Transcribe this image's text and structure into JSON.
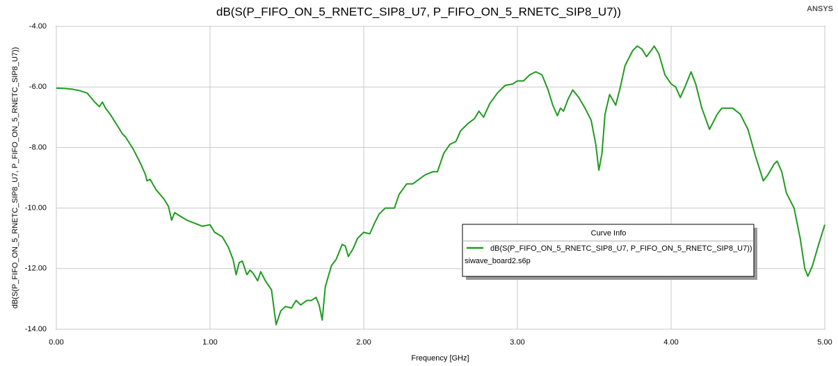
{
  "chart_data": {
    "type": "line",
    "title": "dB(S(P_FIFO_ON_5_RNETC_SIP8_U7, P_FIFO_ON_5_RNETC_SIP8_U7))",
    "brand": "ANSYS",
    "x_label": "Frequency [GHz]",
    "y_label": "dB(S(P_FIFO_ON_5_RNETC_SIP8_U7, P_FIFO_ON_5_RNETC_SIP8_U7))",
    "legend_title": "Curve Info",
    "legend_source": "siwave_board2.s6p",
    "grid": true,
    "xlim": [
      0,
      5
    ],
    "ylim": [
      -14,
      -4
    ],
    "xticks": [
      {
        "value": 0,
        "label": "0.00"
      },
      {
        "value": 1,
        "label": "1.00"
      },
      {
        "value": 2,
        "label": "2.00"
      },
      {
        "value": 3,
        "label": "3.00"
      },
      {
        "value": 4,
        "label": "4.00"
      },
      {
        "value": 5,
        "label": "5.00"
      }
    ],
    "yticks": [
      {
        "value": -14,
        "label": "-14.00"
      },
      {
        "value": -12,
        "label": "-12.00"
      },
      {
        "value": -10,
        "label": "-10.00"
      },
      {
        "value": -8,
        "label": "-8.00"
      },
      {
        "value": -6,
        "label": "-6.00"
      },
      {
        "value": -4,
        "label": "-4.00"
      }
    ],
    "x": [
      0,
      0.05,
      0.1,
      0.15,
      0.2,
      0.25,
      0.28,
      0.3,
      0.32,
      0.35,
      0.4,
      0.43,
      0.45,
      0.5,
      0.55,
      0.58,
      0.59,
      0.61,
      0.65,
      0.7,
      0.73,
      0.75,
      0.77,
      0.8,
      0.85,
      0.9,
      0.95,
      1.0,
      1.03,
      1.08,
      1.12,
      1.15,
      1.17,
      1.19,
      1.21,
      1.24,
      1.26,
      1.28,
      1.31,
      1.33,
      1.36,
      1.4,
      1.43,
      1.46,
      1.49,
      1.53,
      1.56,
      1.59,
      1.63,
      1.66,
      1.69,
      1.71,
      1.73,
      1.75,
      1.79,
      1.82,
      1.86,
      1.88,
      1.9,
      1.93,
      1.96,
      2.0,
      2.04,
      2.07,
      2.1,
      2.14,
      2.2,
      2.23,
      2.28,
      2.32,
      2.4,
      2.45,
      2.48,
      2.52,
      2.56,
      2.6,
      2.63,
      2.68,
      2.72,
      2.75,
      2.78,
      2.82,
      2.87,
      2.92,
      2.97,
      3.0,
      3.04,
      3.08,
      3.12,
      3.16,
      3.2,
      3.23,
      3.26,
      3.28,
      3.3,
      3.33,
      3.36,
      3.4,
      3.44,
      3.48,
      3.51,
      3.53,
      3.55,
      3.57,
      3.6,
      3.64,
      3.67,
      3.7,
      3.75,
      3.78,
      3.81,
      3.84,
      3.87,
      3.89,
      3.92,
      3.96,
      4.0,
      4.03,
      4.06,
      4.09,
      4.13,
      4.16,
      4.2,
      4.25,
      4.3,
      4.33,
      4.4,
      4.45,
      4.5,
      4.55,
      4.6,
      4.63,
      4.67,
      4.69,
      4.72,
      4.75,
      4.8,
      4.84,
      4.87,
      4.89,
      4.92,
      4.96,
      5.0
    ],
    "series": [
      {
        "name": "dB(S(P_FIFO_ON_5_RNETC_SIP8_U7, P_FIFO_ON_5_RNETC_SIP8_U7))",
        "color": "#1f9a1f",
        "values": [
          -6.04,
          -6.05,
          -6.07,
          -6.12,
          -6.2,
          -6.5,
          -6.65,
          -6.5,
          -6.7,
          -6.9,
          -7.3,
          -7.55,
          -7.65,
          -8.05,
          -8.55,
          -8.9,
          -9.1,
          -9.05,
          -9.4,
          -9.7,
          -9.95,
          -10.4,
          -10.15,
          -10.25,
          -10.4,
          -10.5,
          -10.6,
          -10.55,
          -10.8,
          -10.95,
          -11.3,
          -11.7,
          -12.2,
          -11.8,
          -11.75,
          -12.2,
          -12.05,
          -12.15,
          -12.4,
          -12.1,
          -12.4,
          -12.7,
          -13.85,
          -13.4,
          -13.25,
          -13.3,
          -13.05,
          -13.2,
          -13.05,
          -13.05,
          -12.95,
          -13.2,
          -13.7,
          -12.6,
          -11.9,
          -11.7,
          -11.2,
          -11.25,
          -11.6,
          -11.35,
          -11.0,
          -10.8,
          -10.85,
          -10.5,
          -10.2,
          -10.0,
          -10.0,
          -9.55,
          -9.2,
          -9.2,
          -8.9,
          -8.8,
          -8.8,
          -8.2,
          -7.9,
          -7.8,
          -7.45,
          -7.2,
          -7.05,
          -6.8,
          -7.0,
          -6.55,
          -6.2,
          -5.95,
          -5.9,
          -5.8,
          -5.8,
          -5.6,
          -5.5,
          -5.6,
          -6.1,
          -6.6,
          -6.95,
          -6.7,
          -6.8,
          -6.4,
          -6.1,
          -6.35,
          -6.7,
          -7.1,
          -7.9,
          -8.75,
          -8.2,
          -6.9,
          -6.25,
          -6.6,
          -6.0,
          -5.3,
          -4.8,
          -4.65,
          -4.75,
          -5.0,
          -4.8,
          -4.65,
          -4.9,
          -5.6,
          -5.9,
          -6.0,
          -6.35,
          -6.0,
          -5.5,
          -5.9,
          -6.7,
          -7.4,
          -6.9,
          -6.7,
          -6.7,
          -6.9,
          -7.4,
          -8.3,
          -9.1,
          -8.9,
          -8.55,
          -8.45,
          -8.8,
          -9.5,
          -10.0,
          -11.0,
          -12.0,
          -12.25,
          -11.9,
          -11.2,
          -10.55
        ]
      }
    ]
  }
}
